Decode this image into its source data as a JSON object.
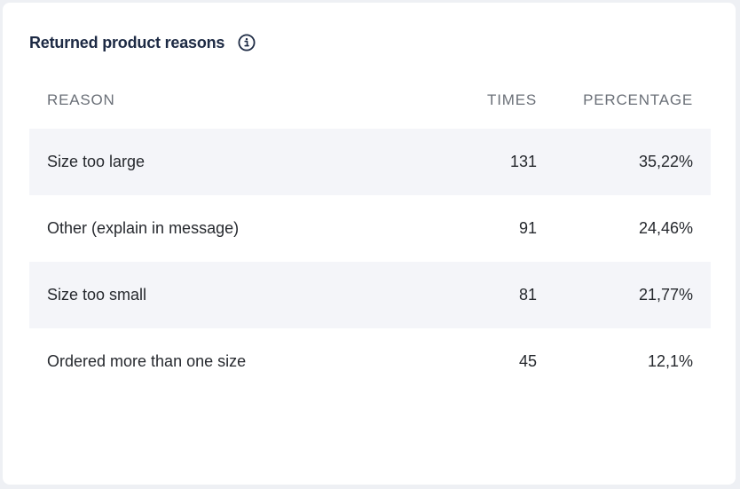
{
  "widget": {
    "title": "Returned product reasons",
    "info_icon": "info-circle-icon"
  },
  "table": {
    "columns": {
      "reason": "REASON",
      "times": "TIMES",
      "percentage": "PERCENTAGE"
    },
    "rows": [
      {
        "reason": "Size too large",
        "times": "131",
        "percentage": "35,22%"
      },
      {
        "reason": "Other (explain in message)",
        "times": "91",
        "percentage": "24,46%"
      },
      {
        "reason": "Size too small",
        "times": "81",
        "percentage": "21,77%"
      },
      {
        "reason": "Ordered more than one size",
        "times": "45",
        "percentage": "12,1%"
      }
    ]
  },
  "colors": {
    "title": "#1d2a44",
    "header_text": "#6b7078",
    "row_text": "#26292e",
    "row_shade": "#f4f5f9",
    "page_background": "#eef0f4"
  }
}
